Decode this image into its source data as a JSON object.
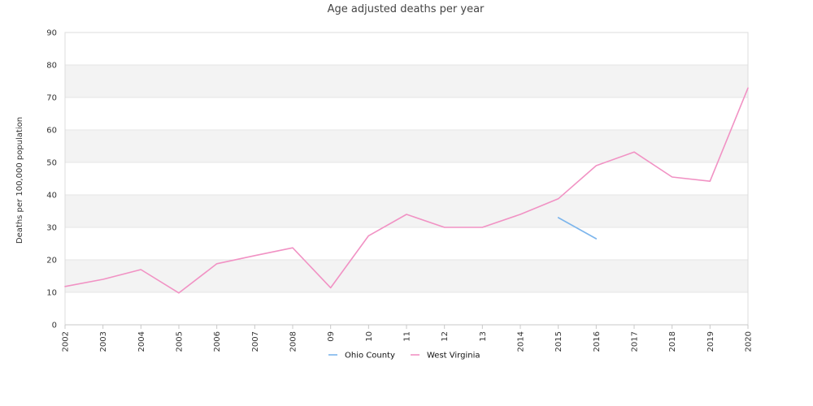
{
  "chart_data": {
    "type": "line",
    "title": "Age adjusted deaths per year",
    "xlabel": "",
    "ylabel": "Deaths per 100,000 population",
    "ylim": [
      0,
      90
    ],
    "y_ticks": [
      0,
      10,
      20,
      30,
      40,
      50,
      60,
      70,
      80,
      90
    ],
    "categories": [
      "2002",
      "2003",
      "2004",
      "2005",
      "2006",
      "2007",
      "2008",
      "09",
      "10",
      "11",
      "12",
      "13",
      "2014",
      "2015",
      "2016",
      "2017",
      "2018",
      "2019",
      "2020"
    ],
    "series": [
      {
        "name": "Ohio County",
        "color": "#7cb5ec",
        "values": [
          null,
          null,
          null,
          null,
          null,
          null,
          null,
          null,
          null,
          null,
          null,
          null,
          null,
          33.0,
          26.5,
          null,
          null,
          null,
          null
        ]
      },
      {
        "name": "West Virginia",
        "color": "#f192c4",
        "values": [
          11.8,
          14.0,
          17.0,
          9.8,
          18.8,
          21.3,
          23.7,
          11.4,
          27.4,
          34.0,
          30.0,
          30.0,
          34.0,
          38.8,
          49.0,
          53.2,
          45.5,
          44.2,
          72.9
        ]
      }
    ],
    "grid": true,
    "legend": "bottom-center"
  }
}
